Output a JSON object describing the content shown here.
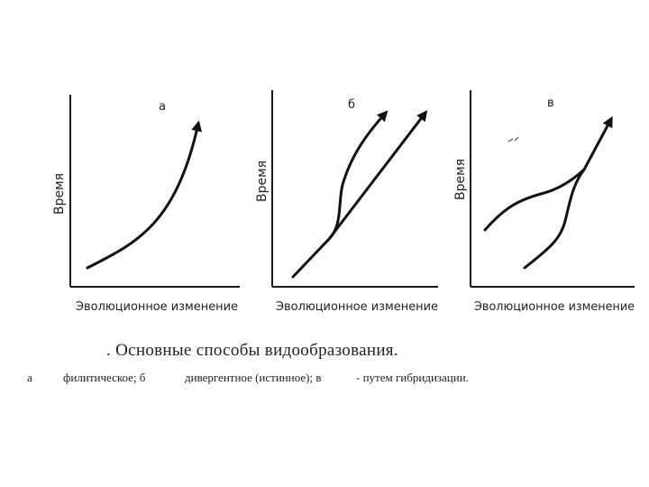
{
  "panels": [
    {
      "letter": "а",
      "ylabel": "Время",
      "xlabel": "Эволюционное изменение"
    },
    {
      "letter": "б",
      "ylabel": "Время",
      "xlabel": "Эволюционное изменение"
    },
    {
      "letter": "в",
      "ylabel": "Время",
      "xlabel": "Эволюционное изменение"
    }
  ],
  "caption": {
    "title": ". Основные способы видообразования.",
    "legend": [
      "а",
      "филитическое; б",
      "дивергентное (истинное); в",
      "- путем гибридизации."
    ]
  }
}
